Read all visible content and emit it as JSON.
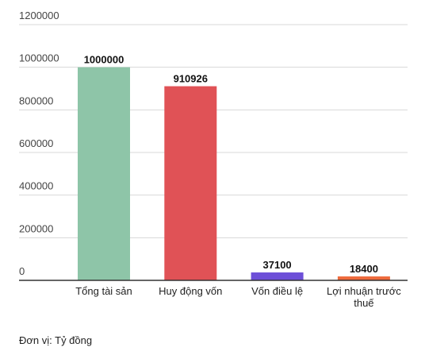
{
  "chart_data": {
    "type": "bar",
    "categories": [
      "Tổng tài sản",
      "Huy động vốn",
      "Vốn điều lệ",
      [
        "Lợi nhuận trước",
        "thuế"
      ]
    ],
    "values": [
      1000000,
      910926,
      37100,
      18400
    ],
    "value_labels": [
      "1000000",
      "910926",
      "37100",
      "18400"
    ],
    "colors": [
      "#8ec5a8",
      "#e05256",
      "#6d4fd8",
      "#ee6a3c"
    ],
    "ylim": [
      0,
      1200000
    ],
    "yticks": [
      0,
      200000,
      400000,
      600000,
      800000,
      1000000,
      1200000
    ],
    "ytick_labels": [
      "0",
      "200000",
      "400000",
      "600000",
      "800000",
      "1000000",
      "1200000"
    ],
    "grid": true,
    "xlabel": "",
    "ylabel": ""
  },
  "footnote": "Đơn vị: Tỷ đồng"
}
